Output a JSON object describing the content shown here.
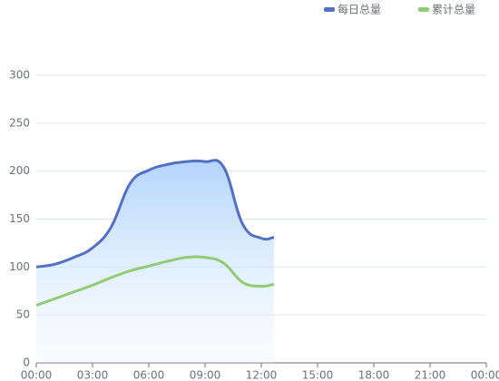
{
  "chart_data": {
    "type": "line",
    "x": [
      0,
      1,
      2,
      3,
      4,
      5,
      6,
      7,
      8,
      9,
      10,
      11,
      12,
      12.67
    ],
    "series": [
      {
        "name": "每日总量",
        "color": "#5470c6",
        "area": true,
        "values": [
          100,
          103,
          110,
          120,
          142,
          187,
          201,
          207,
          210,
          210,
          204,
          145,
          130,
          131
        ]
      },
      {
        "name": "累计总量",
        "color": "#91cc75",
        "values": [
          60,
          67,
          74,
          81,
          89,
          96,
          101,
          106,
          110,
          110,
          104,
          84,
          80,
          82
        ]
      }
    ],
    "xlim": [
      0,
      24
    ],
    "xticks": [
      {
        "value": 0,
        "label": "00:00"
      },
      {
        "value": 3,
        "label": "03:00"
      },
      {
        "value": 6,
        "label": "06:00"
      },
      {
        "value": 9,
        "label": "09:00"
      },
      {
        "value": 12,
        "label": "12:00"
      },
      {
        "value": 15,
        "label": "15:00"
      },
      {
        "value": 18,
        "label": "18:00"
      },
      {
        "value": 21,
        "label": "21:00"
      },
      {
        "value": 24,
        "label": "00:00"
      }
    ],
    "ylim": [
      0,
      300
    ],
    "yticks": [
      0,
      50,
      100,
      150,
      200,
      250,
      300
    ],
    "grid": true,
    "legend": "top-right"
  }
}
